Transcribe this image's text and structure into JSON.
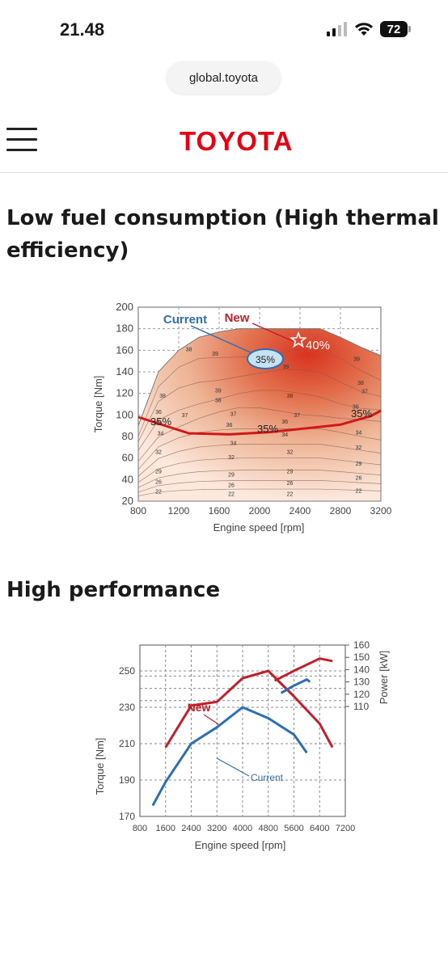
{
  "status_bar": {
    "time": "21.48",
    "battery": "72"
  },
  "browser": {
    "url": "global.toyota"
  },
  "header": {
    "logo": "TOYOTA",
    "menu_icon": "hamburger-menu-icon"
  },
  "sections": [
    {
      "title": "Low fuel consumption (High thermal efficiency)"
    },
    {
      "title": "High performance"
    }
  ],
  "chart_data": [
    {
      "type": "contour",
      "xlabel": "Engine speed [rpm]",
      "ylabel": "Torque [Nm]",
      "xlim": [
        800,
        3200
      ],
      "ylim": [
        20,
        200
      ],
      "x_ticks": [
        "800",
        "1200",
        "1600",
        "2000",
        "2400",
        "2800",
        "3200"
      ],
      "y_ticks": [
        "20",
        "40",
        "60",
        "80",
        "100",
        "120",
        "140",
        "160",
        "180",
        "200"
      ],
      "legend": {
        "current": "Current",
        "new": "New"
      },
      "annotations": {
        "current_peak": "35%",
        "new_peak": "40%",
        "line_35": "35%"
      },
      "contour_labels": [
        {
          "x": 1300,
          "y": 159,
          "label": "38"
        },
        {
          "x": 1560,
          "y": 155,
          "label": "39"
        },
        {
          "x": 2260,
          "y": 143,
          "label": "39"
        },
        {
          "x": 2960,
          "y": 150,
          "label": "39"
        },
        {
          "x": 1590,
          "y": 121,
          "label": "39"
        },
        {
          "x": 3000,
          "y": 128,
          "label": "38"
        },
        {
          "x": 1040,
          "y": 116,
          "label": "38"
        },
        {
          "x": 1590,
          "y": 112,
          "label": "38"
        },
        {
          "x": 2300,
          "y": 116,
          "label": "38"
        },
        {
          "x": 3040,
          "y": 120,
          "label": "37"
        },
        {
          "x": 2950,
          "y": 106,
          "label": "36"
        },
        {
          "x": 1000,
          "y": 101,
          "label": "36"
        },
        {
          "x": 1260,
          "y": 98,
          "label": "37"
        },
        {
          "x": 1740,
          "y": 99,
          "label": "37"
        },
        {
          "x": 2370,
          "y": 98,
          "label": "37"
        },
        {
          "x": 1000,
          "y": 91,
          "label": "35"
        },
        {
          "x": 1700,
          "y": 89,
          "label": "36"
        },
        {
          "x": 2250,
          "y": 92,
          "label": "36"
        },
        {
          "x": 1020,
          "y": 81,
          "label": "34"
        },
        {
          "x": 1740,
          "y": 72,
          "label": "34"
        },
        {
          "x": 2250,
          "y": 80,
          "label": "34"
        },
        {
          "x": 2980,
          "y": 82,
          "label": "34"
        },
        {
          "x": 1000,
          "y": 64,
          "label": "32"
        },
        {
          "x": 1720,
          "y": 59,
          "label": "32"
        },
        {
          "x": 2300,
          "y": 64,
          "label": "32"
        },
        {
          "x": 2980,
          "y": 68,
          "label": "32"
        },
        {
          "x": 1000,
          "y": 46,
          "label": "29"
        },
        {
          "x": 1720,
          "y": 43,
          "label": "29"
        },
        {
          "x": 2300,
          "y": 46,
          "label": "29"
        },
        {
          "x": 2980,
          "y": 53,
          "label": "29"
        },
        {
          "x": 1000,
          "y": 36,
          "label": "26"
        },
        {
          "x": 1720,
          "y": 33,
          "label": "26"
        },
        {
          "x": 2300,
          "y": 35,
          "label": "26"
        },
        {
          "x": 2980,
          "y": 40,
          "label": "26"
        },
        {
          "x": 1000,
          "y": 27,
          "label": "22"
        },
        {
          "x": 1720,
          "y": 25,
          "label": "22"
        },
        {
          "x": 2300,
          "y": 25,
          "label": "22"
        },
        {
          "x": 2980,
          "y": 28,
          "label": "22"
        }
      ],
      "series": [
        {
          "name": "35% (New)",
          "x": [
            800,
            1000,
            1300,
            1700,
            2100,
            2500,
            2800,
            3100,
            3200
          ],
          "y": [
            98,
            92,
            83,
            82,
            84,
            88,
            91,
            99,
            104
          ]
        }
      ],
      "boundary": {
        "x": [
          800,
          1000,
          1200,
          1400,
          1600,
          1800,
          2000,
          2200,
          2400,
          2600,
          2800,
          3000,
          3200
        ],
        "y": [
          90,
          140,
          160,
          172,
          177,
          180,
          180,
          180,
          180,
          180,
          172,
          163,
          155
        ]
      }
    },
    {
      "type": "line",
      "xlabel": "Engine speed [rpm]",
      "ylabel": "Torque [Nm]",
      "y2label": "Power [kW]",
      "xlim": [
        800,
        7200
      ],
      "x_ticks": [
        "800",
        "1600",
        "2400",
        "3200",
        "4000",
        "4800",
        "5600",
        "6400",
        "7200"
      ],
      "torque_ticks": [
        "170",
        "190",
        "210",
        "230",
        "250"
      ],
      "power_ticks": [
        "110",
        "120",
        "130",
        "140",
        "150",
        "160"
      ],
      "labels": {
        "new": "New",
        "current": "Current"
      },
      "series": [
        {
          "name": "New",
          "axis": "torque",
          "x": [
            1600,
            2400,
            3200,
            4000,
            4800,
            5600,
            6400,
            6800
          ],
          "y": [
            208,
            231,
            233,
            246,
            250,
            236,
            221,
            208
          ]
        },
        {
          "name": "Current",
          "axis": "torque",
          "x": [
            1200,
            1600,
            2400,
            3200,
            4000,
            4800,
            5600,
            6000
          ],
          "y": [
            176,
            189,
            210,
            219,
            230,
            224,
            215,
            205
          ]
        },
        {
          "name": "New",
          "axis": "power",
          "x": [
            5000,
            5600,
            6000,
            6400,
            6800
          ],
          "y": [
            131,
            139,
            144,
            149,
            147
          ]
        },
        {
          "name": "Current",
          "axis": "power",
          "x": [
            5200,
            5600,
            6000,
            6100
          ],
          "y": [
            121,
            127,
            132,
            130
          ]
        }
      ]
    }
  ]
}
